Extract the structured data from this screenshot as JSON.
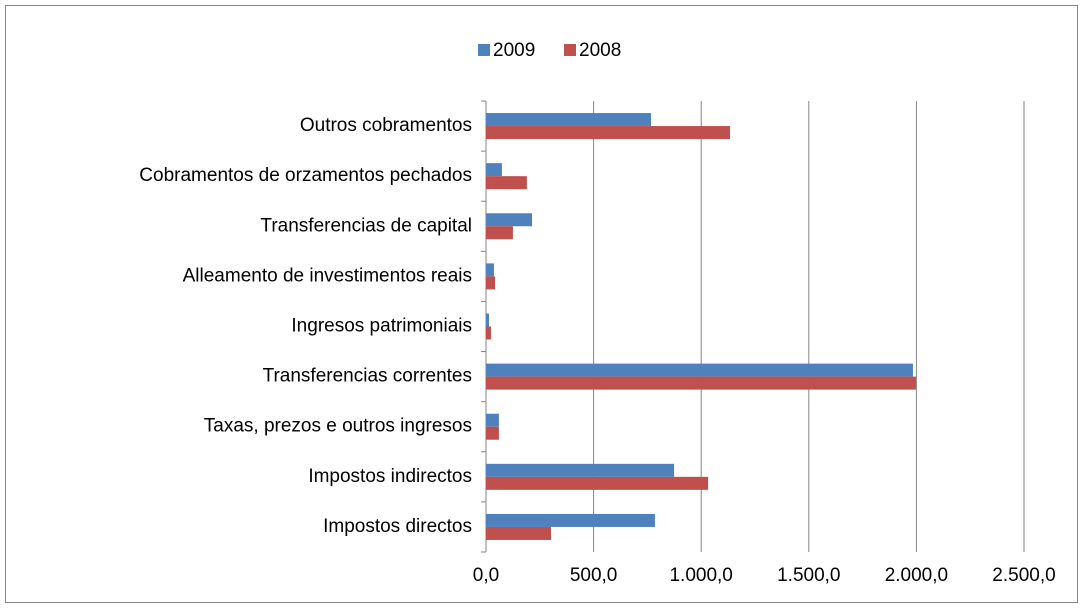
{
  "chart_data": {
    "type": "hbar",
    "categories": [
      "Impostos directos",
      "Impostos indirectos",
      "Taxas, prezos e outros ingresos",
      "Transferencias correntes",
      "Ingresos patrimoniais",
      "Alleamento de investimentos reais",
      "Transferencias de capital",
      "Cobramentos de orzamentos pechados",
      "Outros cobramentos"
    ],
    "series": [
      {
        "name": "2009",
        "color": "#4f81bd",
        "values": [
          785,
          874,
          60,
          1984,
          14,
          37,
          214,
          74,
          767
        ]
      },
      {
        "name": "2008",
        "color": "#c0504d",
        "values": [
          302,
          1032,
          60,
          1998,
          23,
          42,
          125,
          190,
          1134
        ]
      }
    ],
    "xlim": [
      0,
      2500
    ],
    "xticks": [
      {
        "value": 0,
        "label": "0,0"
      },
      {
        "value": 500,
        "label": "500,0"
      },
      {
        "value": 1000,
        "label": "1.000,0"
      },
      {
        "value": 1500,
        "label": "1.500,0"
      },
      {
        "value": 2000,
        "label": "2.000,0"
      },
      {
        "value": 2500,
        "label": "2.500,0"
      }
    ],
    "grid": true,
    "legend": "top"
  }
}
